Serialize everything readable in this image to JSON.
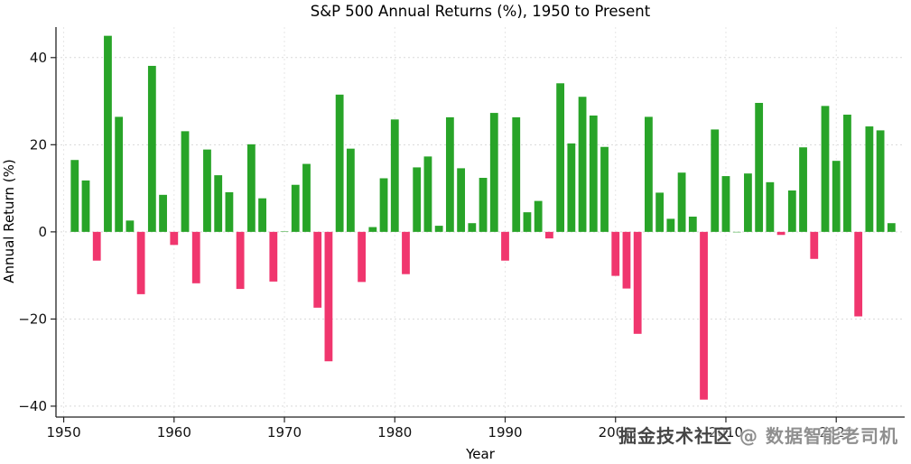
{
  "chart_data": {
    "type": "bar",
    "title": "S&P 500 Annual Returns (%), 1950 to Present",
    "xlabel": "Year",
    "ylabel": "Annual Return (%)",
    "categories": [
      1951,
      1952,
      1953,
      1954,
      1955,
      1956,
      1957,
      1958,
      1959,
      1960,
      1961,
      1962,
      1963,
      1964,
      1965,
      1966,
      1967,
      1968,
      1969,
      1970,
      1971,
      1972,
      1973,
      1974,
      1975,
      1976,
      1977,
      1978,
      1979,
      1980,
      1981,
      1982,
      1983,
      1984,
      1985,
      1986,
      1987,
      1988,
      1989,
      1990,
      1991,
      1992,
      1993,
      1994,
      1995,
      1996,
      1997,
      1998,
      1999,
      2000,
      2001,
      2002,
      2003,
      2004,
      2005,
      2006,
      2007,
      2008,
      2009,
      2010,
      2011,
      2012,
      2013,
      2014,
      2015,
      2016,
      2017,
      2018,
      2019,
      2020,
      2021,
      2022,
      2023,
      2024,
      2025
    ],
    "values": [
      16.5,
      11.8,
      -6.6,
      45.0,
      26.4,
      2.6,
      -14.3,
      38.1,
      8.5,
      -3.0,
      23.1,
      -11.8,
      18.9,
      13.0,
      9.1,
      -13.1,
      20.1,
      7.7,
      -11.4,
      0.1,
      10.8,
      15.6,
      -17.4,
      -29.7,
      31.5,
      19.1,
      -11.5,
      1.1,
      12.3,
      25.8,
      -9.7,
      14.8,
      17.3,
      1.4,
      26.3,
      14.6,
      2.0,
      12.4,
      27.3,
      -6.6,
      26.3,
      4.5,
      7.1,
      -1.5,
      34.1,
      20.3,
      31.0,
      26.7,
      19.5,
      -10.1,
      -13.0,
      -23.4,
      26.4,
      9.0,
      3.0,
      13.6,
      3.5,
      -38.5,
      23.5,
      12.8,
      0.0,
      13.4,
      29.6,
      11.4,
      -0.7,
      9.5,
      19.4,
      -6.2,
      28.9,
      16.3,
      26.9,
      -19.4,
      24.2,
      23.3,
      2.0
    ],
    "xticks": [
      1950,
      1960,
      1970,
      1980,
      1990,
      2000,
      2010,
      2020
    ],
    "yticks": [
      -40,
      -20,
      0,
      20,
      40
    ],
    "ylim": [
      -42.5,
      47
    ],
    "grid": "dashed",
    "legend": "none",
    "positive_color": "#28a428",
    "negative_color": "#f0366e",
    "axis_color": "#222222",
    "grid_color": "#d9d9d9"
  },
  "watermark": {
    "part1": "掘金技术社区",
    "part2": "@ 数据智能老司机"
  }
}
